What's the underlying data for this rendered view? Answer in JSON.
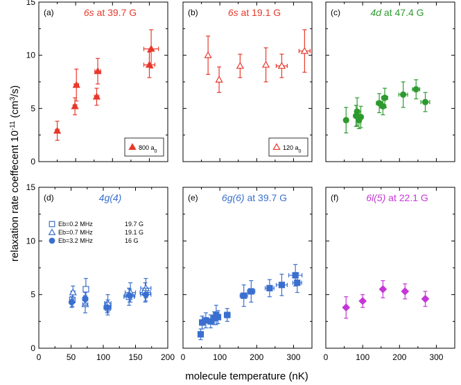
{
  "figure": {
    "ylabel": "relaxation rate coeffecent 10",
    "ylabel_exp": "-11",
    "ylabel_units": " (cm",
    "ylabel_units_exp": "3",
    "ylabel_tail": "/s)",
    "xlabel": "molecule temperature (nK)"
  },
  "colors": {
    "red": "#e8382b",
    "green": "#2e9a2e",
    "blue": "#3a6fcf",
    "purple": "#c437d6"
  },
  "chart_data": [
    {
      "id": "a",
      "type": "scatter",
      "letter": "(a)",
      "title_state": "6s",
      "title_rest": " at 39.7 G",
      "color": "red",
      "xlim": [
        0,
        350
      ],
      "ylim": [
        0,
        15
      ],
      "xticks": [
        0,
        100,
        200,
        300
      ],
      "yticks": [
        0,
        5,
        10,
        15
      ],
      "show_xtick_labels": false,
      "show_ytick_labels": true,
      "legend": [
        {
          "marker": "triangle",
          "filled": true,
          "label": "800 a",
          "sub": "0"
        }
      ],
      "series": [
        {
          "marker": "triangle",
          "filled": true,
          "points": [
            {
              "x": 50,
              "y": 2.9,
              "yerr": 0.9,
              "xerr": 5
            },
            {
              "x": 98,
              "y": 5.2,
              "yerr": 0.8,
              "xerr": 5
            },
            {
              "x": 102,
              "y": 7.2,
              "yerr": 1.5,
              "xerr": 6
            },
            {
              "x": 157,
              "y": 6.1,
              "yerr": 0.8,
              "xerr": 6
            },
            {
              "x": 160,
              "y": 8.5,
              "yerr": 1.2,
              "xerr": 8
            },
            {
              "x": 300,
              "y": 9.1,
              "yerr": 1.2,
              "xerr": 15
            },
            {
              "x": 305,
              "y": 10.6,
              "yerr": 1.8,
              "xerr": 20
            }
          ]
        }
      ]
    },
    {
      "id": "b",
      "type": "scatter",
      "letter": "(b)",
      "title_state": "6s",
      "title_rest": " at 19.1 G",
      "color": "red",
      "xlim": [
        0,
        350
      ],
      "ylim": [
        0,
        15
      ],
      "xticks": [
        0,
        100,
        200,
        300
      ],
      "yticks": [
        0,
        5,
        10,
        15
      ],
      "show_xtick_labels": false,
      "show_ytick_labels": false,
      "legend": [
        {
          "marker": "triangle",
          "filled": false,
          "label": "120 a",
          "sub": "0"
        }
      ],
      "series": [
        {
          "marker": "triangle",
          "filled": false,
          "points": [
            {
              "x": 68,
              "y": 10.0,
              "yerr": 1.8,
              "xerr": 0
            },
            {
              "x": 98,
              "y": 7.7,
              "yerr": 1.2,
              "xerr": 0
            },
            {
              "x": 155,
              "y": 9.0,
              "yerr": 1.1,
              "xerr": 0
            },
            {
              "x": 225,
              "y": 9.1,
              "yerr": 1.6,
              "xerr": 0
            },
            {
              "x": 268,
              "y": 9.0,
              "yerr": 1.1,
              "xerr": 15
            },
            {
              "x": 330,
              "y": 10.4,
              "yerr": 2.0,
              "xerr": 15
            }
          ]
        }
      ]
    },
    {
      "id": "c",
      "type": "scatter",
      "letter": "(c)",
      "title_state": "4d",
      "title_rest": " at 47.4 G",
      "color": "green",
      "xlim": [
        0,
        350
      ],
      "ylim": [
        0,
        15
      ],
      "xticks": [
        0,
        100,
        200,
        300
      ],
      "yticks": [
        0,
        5,
        10,
        15
      ],
      "show_xtick_labels": false,
      "show_ytick_labels": false,
      "legend": [],
      "series": [
        {
          "marker": "circle",
          "filled": true,
          "points": [
            {
              "x": 55,
              "y": 3.9,
              "yerr": 1.2,
              "xerr": 5
            },
            {
              "x": 82,
              "y": 4.3,
              "yerr": 1.0,
              "xerr": 6
            },
            {
              "x": 85,
              "y": 4.7,
              "yerr": 1.3,
              "xerr": 6
            },
            {
              "x": 90,
              "y": 3.9,
              "yerr": 0.8,
              "xerr": 6
            },
            {
              "x": 95,
              "y": 4.2,
              "yerr": 1.0,
              "xerr": 6
            },
            {
              "x": 145,
              "y": 5.5,
              "yerr": 0.9,
              "xerr": 8
            },
            {
              "x": 155,
              "y": 5.2,
              "yerr": 0.8,
              "xerr": 8
            },
            {
              "x": 160,
              "y": 6.0,
              "yerr": 0.9,
              "xerr": 8
            },
            {
              "x": 210,
              "y": 6.3,
              "yerr": 1.2,
              "xerr": 12
            },
            {
              "x": 245,
              "y": 6.8,
              "yerr": 0.9,
              "xerr": 10
            },
            {
              "x": 270,
              "y": 5.6,
              "yerr": 0.9,
              "xerr": 12
            }
          ]
        }
      ]
    },
    {
      "id": "d",
      "type": "scatter",
      "letter": "(d)",
      "title_state": "4g(4)",
      "title_rest": "",
      "color": "blue",
      "xlim": [
        0,
        200
      ],
      "ylim": [
        0,
        15
      ],
      "xticks": [
        0,
        50,
        100,
        150,
        200
      ],
      "yticks": [
        0,
        5,
        10,
        15
      ],
      "show_xtick_labels": true,
      "show_ytick_labels": true,
      "legend": [
        {
          "marker": "square",
          "filled": false,
          "label": "Eb=0.2 MHz",
          "field": "19.7 G"
        },
        {
          "marker": "triangle",
          "filled": false,
          "label": "Eb=0.7 MHz",
          "field": "19.1 G"
        },
        {
          "marker": "circle",
          "filled": true,
          "label": "Eb=3.2 MHz",
          "field": "16 G"
        }
      ],
      "series": [
        {
          "marker": "square",
          "filled": false,
          "points": [
            {
              "x": 52,
              "y": 4.5,
              "yerr": 0.6,
              "xerr": 3
            },
            {
              "x": 73,
              "y": 5.5,
              "yerr": 1.0,
              "xerr": 4
            },
            {
              "x": 107,
              "y": 3.8,
              "yerr": 0.7,
              "xerr": 5
            },
            {
              "x": 140,
              "y": 4.8,
              "yerr": 0.8,
              "xerr": 8
            },
            {
              "x": 165,
              "y": 5.2,
              "yerr": 0.9,
              "xerr": 8
            }
          ]
        },
        {
          "marker": "triangle",
          "filled": false,
          "points": [
            {
              "x": 53,
              "y": 5.2,
              "yerr": 0.6,
              "xerr": 3
            },
            {
              "x": 72,
              "y": 4.1,
              "yerr": 0.8,
              "xerr": 4
            },
            {
              "x": 107,
              "y": 4.2,
              "yerr": 0.8,
              "xerr": 5
            },
            {
              "x": 142,
              "y": 5.2,
              "yerr": 0.9,
              "xerr": 8
            },
            {
              "x": 166,
              "y": 5.6,
              "yerr": 0.9,
              "xerr": 8
            }
          ]
        },
        {
          "marker": "circle",
          "filled": true,
          "points": [
            {
              "x": 51,
              "y": 4.3,
              "yerr": 0.5,
              "xerr": 3
            },
            {
              "x": 72,
              "y": 4.6,
              "yerr": 0.6,
              "xerr": 4
            },
            {
              "x": 106,
              "y": 3.8,
              "yerr": 0.5,
              "xerr": 5
            },
            {
              "x": 141,
              "y": 4.9,
              "yerr": 0.6,
              "xerr": 8
            },
            {
              "x": 166,
              "y": 5.0,
              "yerr": 0.6,
              "xerr": 8
            }
          ]
        }
      ]
    },
    {
      "id": "e",
      "type": "scatter",
      "letter": "(e)",
      "title_state": "6g(6)",
      "title_rest": " at 39.7 G",
      "color": "blue",
      "xlim": [
        0,
        350
      ],
      "ylim": [
        0,
        15
      ],
      "xticks": [
        0,
        100,
        200,
        300
      ],
      "yticks": [
        0,
        5,
        10,
        15
      ],
      "show_xtick_labels": true,
      "show_ytick_labels": false,
      "legend": [],
      "series": [
        {
          "marker": "square",
          "filled": true,
          "points": [
            {
              "x": 48,
              "y": 1.3,
              "yerr": 0.5,
              "xerr": 4
            },
            {
              "x": 52,
              "y": 2.4,
              "yerr": 0.6,
              "xerr": 4
            },
            {
              "x": 62,
              "y": 2.6,
              "yerr": 0.7,
              "xerr": 5
            },
            {
              "x": 75,
              "y": 2.5,
              "yerr": 0.6,
              "xerr": 5
            },
            {
              "x": 85,
              "y": 2.8,
              "yerr": 0.6,
              "xerr": 5
            },
            {
              "x": 90,
              "y": 3.1,
              "yerr": 0.9,
              "xerr": 6
            },
            {
              "x": 95,
              "y": 2.9,
              "yerr": 0.6,
              "xerr": 6
            },
            {
              "x": 120,
              "y": 3.1,
              "yerr": 0.6,
              "xerr": 8
            },
            {
              "x": 165,
              "y": 4.9,
              "yerr": 1.0,
              "xerr": 10
            },
            {
              "x": 185,
              "y": 5.3,
              "yerr": 1.0,
              "xerr": 10
            },
            {
              "x": 235,
              "y": 5.6,
              "yerr": 0.8,
              "xerr": 12
            },
            {
              "x": 268,
              "y": 5.9,
              "yerr": 1.0,
              "xerr": 15
            },
            {
              "x": 305,
              "y": 6.8,
              "yerr": 1.0,
              "xerr": 18
            },
            {
              "x": 310,
              "y": 6.1,
              "yerr": 0.9,
              "xerr": 12
            }
          ]
        }
      ]
    },
    {
      "id": "f",
      "type": "scatter",
      "letter": "(f)",
      "title_state": "6l(5)",
      "title_rest": " at 22.1 G",
      "color": "purple",
      "xlim": [
        0,
        350
      ],
      "ylim": [
        0,
        15
      ],
      "xticks": [
        0,
        100,
        200,
        300
      ],
      "yticks": [
        0,
        5,
        10,
        15
      ],
      "show_xtick_labels": true,
      "show_ytick_labels": false,
      "legend": [],
      "series": [
        {
          "marker": "diamond",
          "filled": true,
          "points": [
            {
              "x": 55,
              "y": 3.8,
              "yerr": 1.0,
              "xerr": 0
            },
            {
              "x": 100,
              "y": 4.4,
              "yerr": 0.6,
              "xerr": 0
            },
            {
              "x": 155,
              "y": 5.5,
              "yerr": 0.8,
              "xerr": 0
            },
            {
              "x": 215,
              "y": 5.3,
              "yerr": 0.7,
              "xerr": 0
            },
            {
              "x": 270,
              "y": 4.6,
              "yerr": 0.7,
              "xerr": 0
            }
          ]
        }
      ]
    }
  ]
}
